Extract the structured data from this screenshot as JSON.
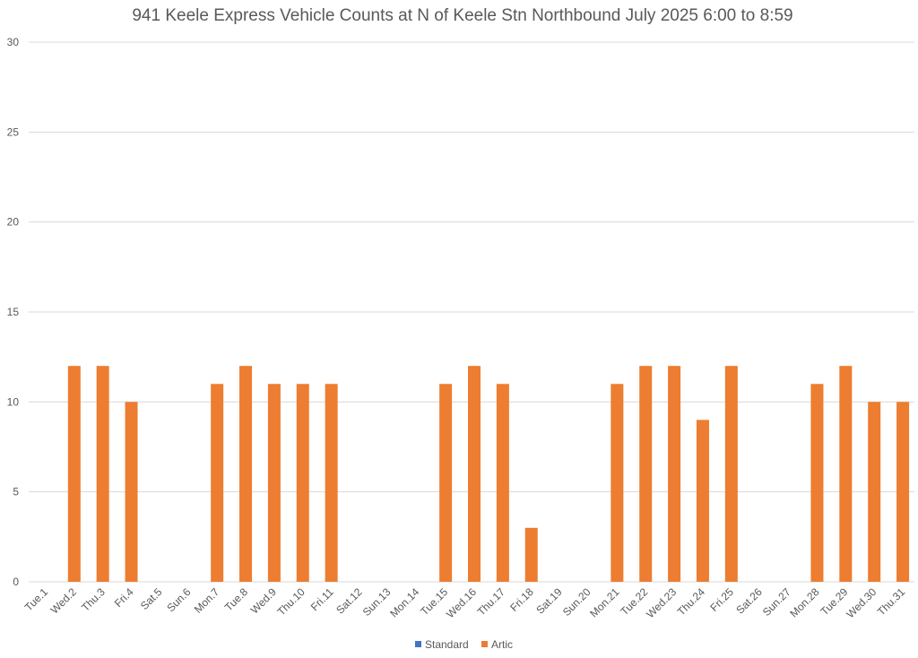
{
  "chart_data": {
    "type": "bar",
    "title": "941 Keele Express Vehicle Counts at N of Keele Stn Northbound July 2025  6:00 to 8:59",
    "xlabel": "",
    "ylabel": "",
    "ylim": [
      0,
      30
    ],
    "yticks": [
      0,
      5,
      10,
      15,
      20,
      25,
      30
    ],
    "grid": true,
    "legend_position": "bottom",
    "categories": [
      "Tue.1",
      "Wed.2",
      "Thu.3",
      "Fri.4",
      "Sat.5",
      "Sun.6",
      "Mon.7",
      "Tue.8",
      "Wed.9",
      "Thu.10",
      "Fri.11",
      "Sat.12",
      "Sun.13",
      "Mon.14",
      "Tue.15",
      "Wed.16",
      "Thu.17",
      "Fri.18",
      "Sat.19",
      "Sun.20",
      "Mon.21",
      "Tue.22",
      "Wed.23",
      "Thu.24",
      "Fri.25",
      "Sat.26",
      "Sun.27",
      "Mon.28",
      "Tue.29",
      "Wed.30",
      "Thu.31"
    ],
    "series": [
      {
        "name": "Standard",
        "color": "#4472c4",
        "values": [
          0,
          0,
          0,
          0,
          0,
          0,
          0,
          0,
          0,
          0,
          0,
          0,
          0,
          0,
          0,
          0,
          0,
          0,
          0,
          0,
          0,
          0,
          0,
          0,
          0,
          0,
          0,
          0,
          0,
          0,
          0
        ]
      },
      {
        "name": "Artic",
        "color": "#ed7d31",
        "values": [
          0,
          12,
          12,
          10,
          0,
          0,
          11,
          12,
          11,
          11,
          11,
          0,
          0,
          0,
          11,
          12,
          11,
          3,
          0,
          0,
          11,
          12,
          12,
          9,
          12,
          0,
          0,
          11,
          12,
          10,
          10
        ]
      }
    ]
  }
}
